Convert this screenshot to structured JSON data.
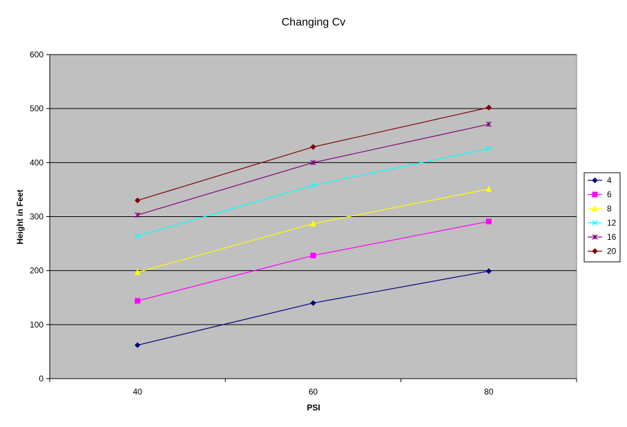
{
  "chart_data": {
    "type": "line",
    "title": "Changing Cv",
    "xlabel": "PSI",
    "ylabel": "Height in Feet",
    "categories": [
      "40",
      "60",
      "80"
    ],
    "ylim": [
      0,
      600
    ],
    "yticks": [
      "0",
      "100",
      "200",
      "300",
      "400",
      "500",
      "600"
    ],
    "grid": "horizontal major gridlines",
    "legend_position": "right",
    "plot_background": "#c0c0c0",
    "series": [
      {
        "name": "4",
        "values": [
          62,
          140,
          199
        ],
        "color": "#000080",
        "marker": "diamond"
      },
      {
        "name": "6",
        "values": [
          144,
          228,
          291
        ],
        "color": "#ff00ff",
        "marker": "square"
      },
      {
        "name": "8",
        "values": [
          197,
          287,
          351
        ],
        "color": "#ffff00",
        "marker": "triangle"
      },
      {
        "name": "12",
        "values": [
          264,
          358,
          426
        ],
        "color": "#00ffff",
        "marker": "x"
      },
      {
        "name": "16",
        "values": [
          303,
          400,
          471
        ],
        "color": "#800080",
        "marker": "star"
      },
      {
        "name": "20",
        "values": [
          330,
          429,
          502
        ],
        "color": "#800000",
        "marker": "circle"
      }
    ]
  }
}
